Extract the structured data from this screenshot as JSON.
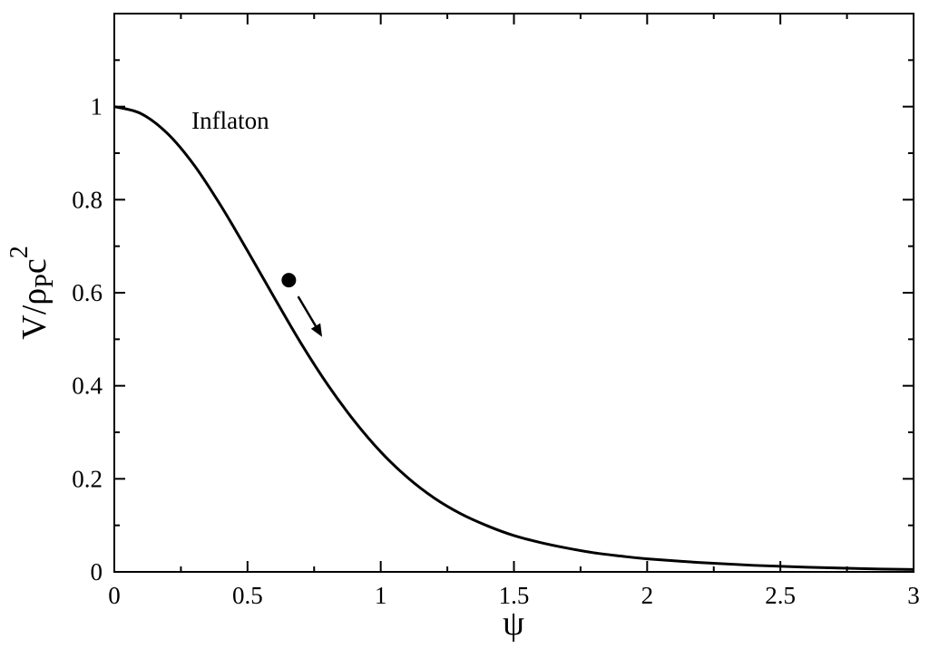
{
  "chart_data": {
    "type": "line",
    "title": "",
    "xlabel": "ψ",
    "ylabel": {
      "main": "V/ρ",
      "sub": "P",
      "tail": "c",
      "sup": "2"
    },
    "xlim": [
      0,
      3
    ],
    "ylim": [
      0,
      1.2
    ],
    "x_ticks": [
      0,
      0.5,
      1,
      1.5,
      2,
      2.5,
      3
    ],
    "x_tick_labels": [
      "0",
      "0.5",
      "1",
      "1.5",
      "2",
      "2.5",
      "3"
    ],
    "y_ticks": [
      0,
      0.2,
      0.4,
      0.6,
      0.8,
      1
    ],
    "y_tick_labels": [
      "0",
      "0.2",
      "0.4",
      "0.6",
      "0.8",
      "1"
    ],
    "grid": false,
    "series": [
      {
        "x": [
          0,
          0.1,
          0.2,
          0.3,
          0.4,
          0.5,
          0.6,
          0.7,
          0.8,
          0.9,
          1.0,
          1.1,
          1.2,
          1.3,
          1.4,
          1.5,
          1.6,
          1.7,
          1.8,
          1.9,
          2.0,
          2.2,
          2.4,
          2.6,
          2.8,
          3.0
        ],
        "y": [
          1.0,
          0.985,
          0.942,
          0.874,
          0.787,
          0.69,
          0.59,
          0.492,
          0.403,
          0.325,
          0.258,
          0.203,
          0.159,
          0.125,
          0.099,
          0.078,
          0.063,
          0.051,
          0.041,
          0.034,
          0.028,
          0.02,
          0.014,
          0.01,
          0.007,
          0.005
        ]
      }
    ],
    "annotations": [
      {
        "text": "Inflaton",
        "x": 0.29,
        "y": 0.97
      }
    ],
    "marker": {
      "x": 0.655,
      "y": 0.627
    },
    "arrow": {
      "from": [
        0.69,
        0.592
      ],
      "to": [
        0.78,
        0.505
      ]
    }
  }
}
